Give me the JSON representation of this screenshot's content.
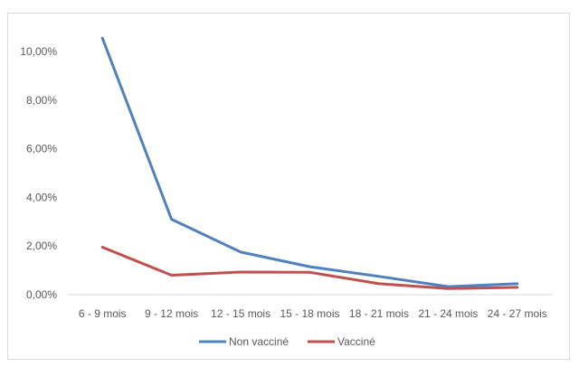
{
  "chart_data": {
    "type": "line",
    "categories": [
      "6 - 9 mois",
      "9 - 12 mois",
      "12 - 15 mois",
      "15 - 18 mois",
      "18 - 21 mois",
      "21 - 24 mois",
      "24 - 27 mois"
    ],
    "series": [
      {
        "name": "Non vacciné",
        "values": [
          10.55,
          3.1,
          1.75,
          1.15,
          0.75,
          0.33,
          0.45
        ],
        "color": "#4f81bd"
      },
      {
        "name": "Vacciné",
        "values": [
          1.95,
          0.8,
          0.93,
          0.92,
          0.45,
          0.25,
          0.3
        ],
        "color": "#c0504d"
      }
    ],
    "ylim": [
      0,
      10
    ],
    "yticks": [
      0,
      2,
      4,
      6,
      8,
      10
    ],
    "ytick_labels": [
      "0,00%",
      "2,00%",
      "4,00%",
      "6,00%",
      "8,00%",
      "10,00%"
    ],
    "title": "",
    "xlabel": "",
    "ylabel": "",
    "grid": false,
    "legend_position": "bottom"
  }
}
